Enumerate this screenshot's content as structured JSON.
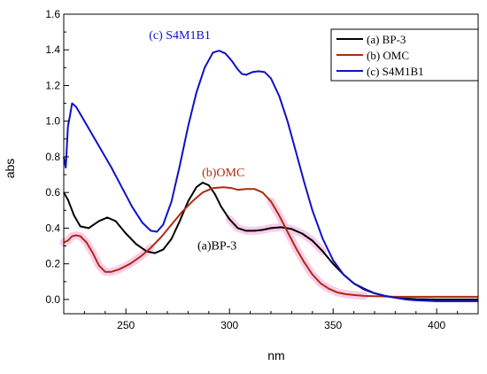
{
  "chart_data": {
    "type": "line",
    "xlabel": "nm",
    "ylabel": "abs",
    "xlim": [
      220,
      420
    ],
    "ylim": [
      -0.08,
      1.6
    ],
    "x_ticks": [
      250,
      300,
      350,
      400
    ],
    "y_ticks": [
      0.0,
      0.2,
      0.4,
      0.6,
      0.8,
      1.0,
      1.2,
      1.4,
      1.6
    ],
    "x_tick_labels": [
      "250",
      "300",
      "350",
      "400"
    ],
    "y_tick_labels": [
      "0.0",
      "0.2",
      "0.4",
      "0.6",
      "0.8",
      "1.0",
      "1.2",
      "1.4",
      "1.6"
    ],
    "legend_position": "top-right",
    "series": [
      {
        "name": "(a) BP-3",
        "color": "#000000",
        "points": [
          [
            220,
            0.6
          ],
          [
            222,
            0.56
          ],
          [
            225,
            0.47
          ],
          [
            228,
            0.41
          ],
          [
            232,
            0.4
          ],
          [
            237,
            0.44
          ],
          [
            241,
            0.46
          ],
          [
            245,
            0.44
          ],
          [
            250,
            0.37
          ],
          [
            255,
            0.31
          ],
          [
            260,
            0.27
          ],
          [
            264,
            0.26
          ],
          [
            268,
            0.28
          ],
          [
            272,
            0.34
          ],
          [
            276,
            0.44
          ],
          [
            280,
            0.55
          ],
          [
            284,
            0.63
          ],
          [
            287,
            0.655
          ],
          [
            290,
            0.64
          ],
          [
            293,
            0.59
          ],
          [
            296,
            0.52
          ],
          [
            300,
            0.45
          ],
          [
            304,
            0.4
          ],
          [
            308,
            0.385
          ],
          [
            312,
            0.385
          ],
          [
            316,
            0.39
          ],
          [
            320,
            0.4
          ],
          [
            325,
            0.405
          ],
          [
            330,
            0.395
          ],
          [
            335,
            0.37
          ],
          [
            340,
            0.33
          ],
          [
            345,
            0.27
          ],
          [
            350,
            0.2
          ],
          [
            355,
            0.14
          ],
          [
            360,
            0.09
          ],
          [
            365,
            0.06
          ],
          [
            370,
            0.035
          ],
          [
            375,
            0.02
          ],
          [
            380,
            0.01
          ],
          [
            385,
            0.005
          ],
          [
            390,
            0.002
          ],
          [
            400,
            0.0
          ],
          [
            420,
            0.0
          ]
        ]
      },
      {
        "name": "(b) OMC",
        "color": "#b02a10",
        "points": [
          [
            220,
            0.32
          ],
          [
            222,
            0.33
          ],
          [
            224,
            0.355
          ],
          [
            226,
            0.36
          ],
          [
            228,
            0.355
          ],
          [
            231,
            0.32
          ],
          [
            234,
            0.26
          ],
          [
            237,
            0.19
          ],
          [
            240,
            0.155
          ],
          [
            243,
            0.155
          ],
          [
            247,
            0.17
          ],
          [
            252,
            0.2
          ],
          [
            257,
            0.24
          ],
          [
            262,
            0.29
          ],
          [
            267,
            0.35
          ],
          [
            272,
            0.42
          ],
          [
            277,
            0.49
          ],
          [
            282,
            0.55
          ],
          [
            287,
            0.6
          ],
          [
            292,
            0.625
          ],
          [
            297,
            0.63
          ],
          [
            301,
            0.625
          ],
          [
            304,
            0.615
          ],
          [
            308,
            0.62
          ],
          [
            312,
            0.62
          ],
          [
            316,
            0.6
          ],
          [
            320,
            0.55
          ],
          [
            324,
            0.47
          ],
          [
            328,
            0.38
          ],
          [
            332,
            0.29
          ],
          [
            336,
            0.21
          ],
          [
            340,
            0.14
          ],
          [
            344,
            0.09
          ],
          [
            348,
            0.06
          ],
          [
            352,
            0.04
          ],
          [
            356,
            0.03
          ],
          [
            360,
            0.025
          ],
          [
            365,
            0.02
          ],
          [
            370,
            0.018
          ],
          [
            380,
            0.015
          ],
          [
            400,
            0.015
          ],
          [
            420,
            0.015
          ]
        ]
      },
      {
        "name": "(c) S4M1B1",
        "color": "#1010c8",
        "points": [
          [
            220,
            0.8
          ],
          [
            221,
            0.74
          ],
          [
            222,
            0.97
          ],
          [
            223,
            1.03
          ],
          [
            224,
            1.1
          ],
          [
            226,
            1.08
          ],
          [
            229,
            1.02
          ],
          [
            233,
            0.94
          ],
          [
            238,
            0.84
          ],
          [
            243,
            0.74
          ],
          [
            248,
            0.63
          ],
          [
            253,
            0.52
          ],
          [
            258,
            0.43
          ],
          [
            262,
            0.385
          ],
          [
            265,
            0.38
          ],
          [
            268,
            0.42
          ],
          [
            272,
            0.55
          ],
          [
            276,
            0.75
          ],
          [
            280,
            0.97
          ],
          [
            284,
            1.16
          ],
          [
            288,
            1.3
          ],
          [
            292,
            1.385
          ],
          [
            295,
            1.395
          ],
          [
            298,
            1.38
          ],
          [
            301,
            1.34
          ],
          [
            304,
            1.29
          ],
          [
            306,
            1.265
          ],
          [
            308,
            1.26
          ],
          [
            311,
            1.275
          ],
          [
            314,
            1.28
          ],
          [
            317,
            1.275
          ],
          [
            320,
            1.24
          ],
          [
            324,
            1.14
          ],
          [
            328,
            1.0
          ],
          [
            332,
            0.83
          ],
          [
            336,
            0.66
          ],
          [
            340,
            0.5
          ],
          [
            345,
            0.34
          ],
          [
            350,
            0.22
          ],
          [
            355,
            0.14
          ],
          [
            360,
            0.09
          ],
          [
            365,
            0.055
          ],
          [
            370,
            0.035
          ],
          [
            375,
            0.02
          ],
          [
            380,
            0.01
          ],
          [
            385,
            0.0
          ],
          [
            390,
            -0.005
          ],
          [
            400,
            -0.01
          ],
          [
            420,
            -0.01
          ]
        ]
      }
    ],
    "annotations": [
      {
        "text": "(c) S4M1B1",
        "x": 276,
        "y": 1.46,
        "color": "#1010c8"
      },
      {
        "text": "(b)OMC",
        "x": 297,
        "y": 0.69,
        "color": "#b02a10"
      },
      {
        "text": "(a)BP-3",
        "x": 294,
        "y": 0.28,
        "color": "#000000"
      }
    ]
  }
}
